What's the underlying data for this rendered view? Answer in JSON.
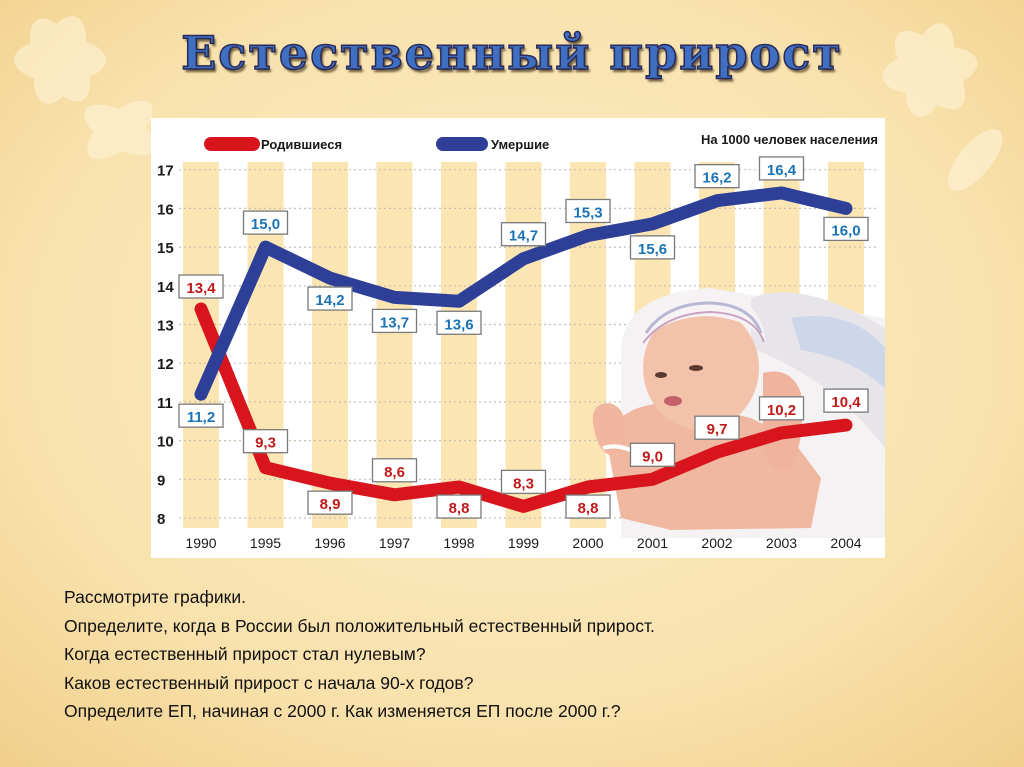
{
  "slide": {
    "title": "Естественный  прирост",
    "questions": [
      "Рассмотрите  графики.",
      "Определите, когда  в  России  был  положительный  естественный  прирост.",
      "Когда  естественный  прирост  стал  нулевым?",
      "Каков  естественный  прирост  с  начала  90-х  годов?",
      "Определите  ЕП,  начиная с  2000 г.  Как  изменяется  ЕП  после  2000 г.?"
    ]
  },
  "colors": {
    "births": "#d8151d",
    "deaths": "#2e3f97",
    "label_deaths": "#1b73b5",
    "label_births": "#c01a1a",
    "stripe": "#fbe6b3",
    "slide_bg": "#f6dca0"
  },
  "chart_data": {
    "type": "line",
    "note": "На 1000 человек населения",
    "categories": [
      "1990",
      "1995",
      "1996",
      "1997",
      "1998",
      "1999",
      "2000",
      "2001",
      "2002",
      "2003",
      "2004"
    ],
    "series": [
      {
        "name": "Родившиеся",
        "values": [
          13.4,
          9.3,
          8.9,
          8.6,
          8.8,
          8.3,
          8.8,
          9.0,
          9.7,
          10.2,
          10.4
        ],
        "labels": [
          "13,4",
          "9,3",
          "8,9",
          "8,6",
          "8,8",
          "8,3",
          "8,8",
          "9,0",
          "9,7",
          "10,2",
          "10,4"
        ]
      },
      {
        "name": "Умершие",
        "values": [
          11.2,
          15.0,
          14.2,
          13.7,
          13.6,
          14.7,
          15.3,
          15.6,
          16.2,
          16.4,
          16.0
        ],
        "labels": [
          "11,2",
          "15,0",
          "14,2",
          "13,7",
          "13,6",
          "14,7",
          "15,3",
          "15,6",
          "16,2",
          "16,4",
          "16,0"
        ]
      }
    ],
    "yticks": [
      "8",
      "9",
      "10",
      "11",
      "12",
      "13",
      "14",
      "15",
      "16",
      "17"
    ],
    "ylim": [
      8,
      17
    ],
    "grid": true,
    "legend": "top-left",
    "has_photo": "newborn-baby"
  }
}
